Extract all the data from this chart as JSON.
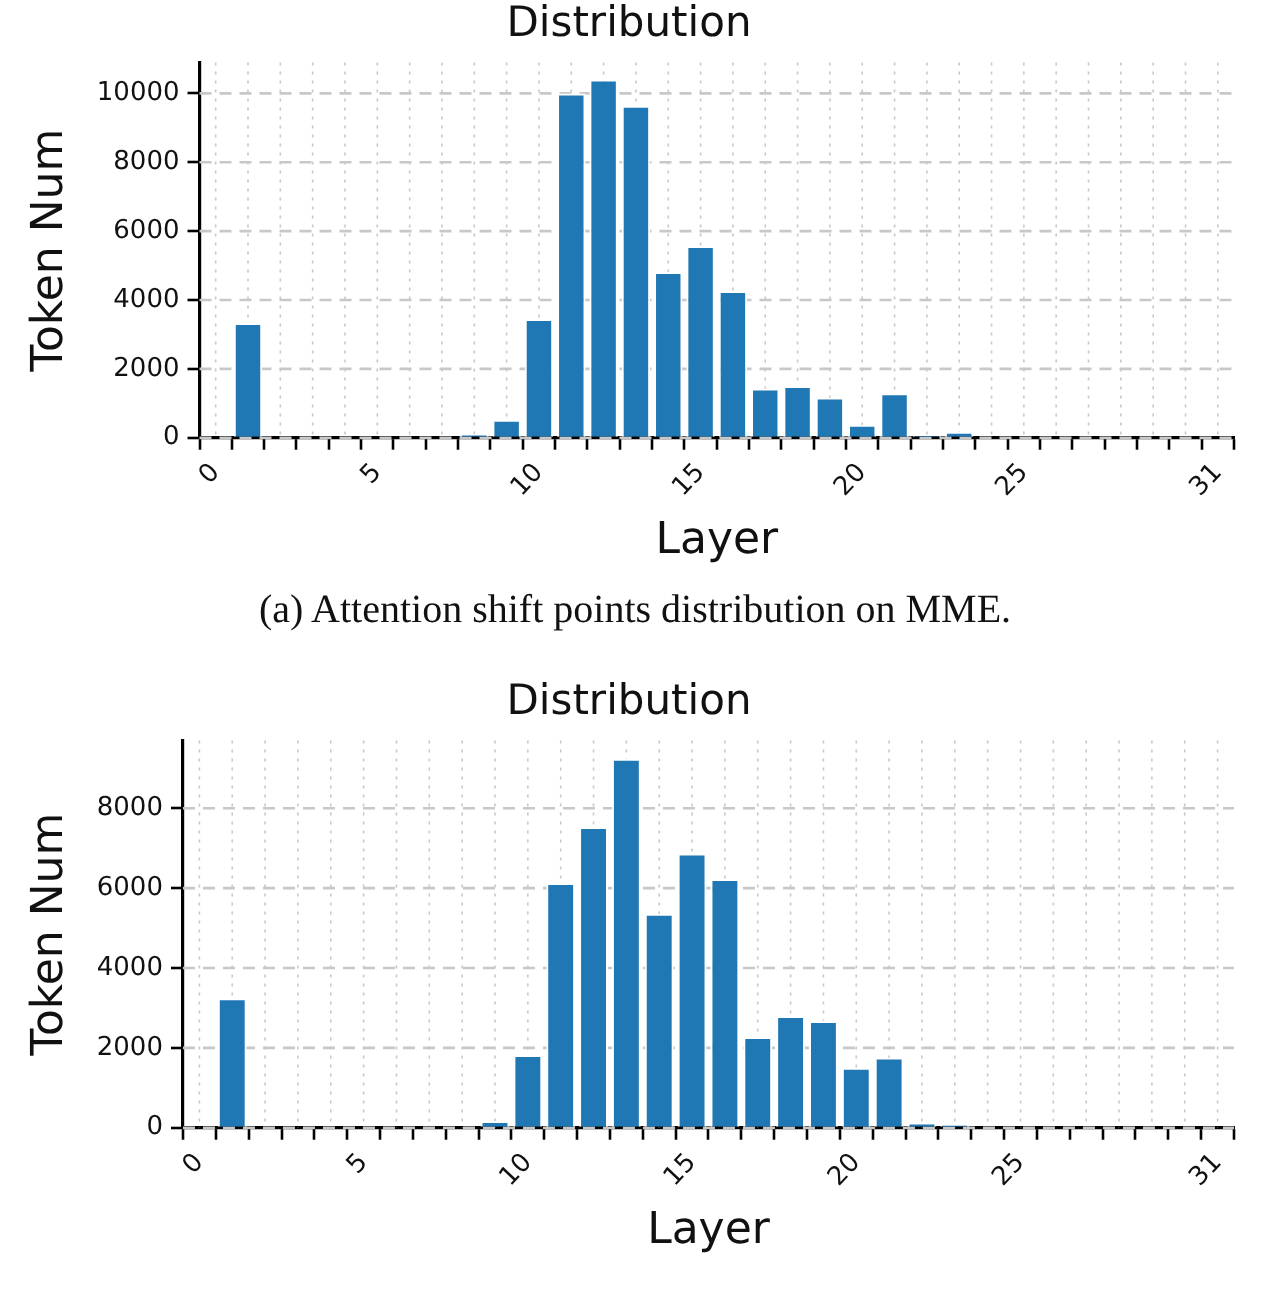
{
  "chart_data": [
    {
      "type": "bar",
      "title": "Distribution",
      "xlabel": "Layer",
      "ylabel": "Token Num",
      "color": "#1f77b4",
      "x": [
        0,
        1,
        2,
        3,
        4,
        5,
        6,
        7,
        8,
        9,
        10,
        11,
        12,
        13,
        14,
        15,
        16,
        17,
        18,
        19,
        20,
        21,
        22,
        23,
        24,
        25,
        26,
        27,
        28,
        29,
        30,
        31
      ],
      "values": [
        0,
        3330,
        0,
        0,
        0,
        0,
        0,
        0,
        100,
        520,
        3450,
        10000,
        10400,
        9640,
        4810,
        5570,
        4260,
        1430,
        1500,
        1170,
        380,
        1290,
        70,
        170,
        0,
        0,
        0,
        0,
        0,
        0,
        0,
        0
      ],
      "xlim": [
        -0.5,
        31.5
      ],
      "xticks": [
        0,
        {
          "value": 1,
          "label": null
        },
        {
          "value": 2,
          "label": null
        },
        {
          "value": 3,
          "label": null
        },
        {
          "value": 4,
          "label": null
        },
        5,
        {
          "value": 6,
          "label": null
        },
        {
          "value": 7,
          "label": null
        },
        {
          "value": 8,
          "label": null
        },
        {
          "value": 9,
          "label": null
        },
        10,
        {
          "value": 11,
          "label": null
        },
        {
          "value": 12,
          "label": null
        },
        {
          "value": 13,
          "label": null
        },
        {
          "value": 14,
          "label": null
        },
        15,
        {
          "value": 16,
          "label": null
        },
        {
          "value": 17,
          "label": null
        },
        {
          "value": 18,
          "label": null
        },
        {
          "value": 19,
          "label": null
        },
        20,
        {
          "value": 21,
          "label": null
        },
        {
          "value": 22,
          "label": null
        },
        {
          "value": 23,
          "label": null
        },
        {
          "value": 24,
          "label": null
        },
        25,
        {
          "value": 26,
          "label": null
        },
        {
          "value": 27,
          "label": null
        },
        {
          "value": 28,
          "label": null
        },
        {
          "value": 29,
          "label": null
        },
        {
          "value": 30,
          "label": null
        },
        31
      ],
      "ylim": [
        0,
        10900
      ],
      "yticks": [
        0,
        2000,
        4000,
        6000,
        8000,
        10000
      ],
      "grid": true,
      "annotations": [
        "(a) Attention shift points distribution on MME."
      ]
    },
    {
      "type": "bar",
      "title": "Distribution",
      "xlabel": "Layer",
      "ylabel": "Token Num",
      "color": "#1f77b4",
      "x": [
        0,
        1,
        2,
        3,
        4,
        5,
        6,
        7,
        8,
        9,
        10,
        11,
        12,
        13,
        14,
        15,
        16,
        17,
        18,
        19,
        20,
        21,
        22,
        23,
        24,
        25,
        26,
        27,
        28,
        29,
        30,
        31
      ],
      "values": [
        0,
        3240,
        0,
        0,
        0,
        0,
        0,
        0,
        0,
        170,
        1820,
        6130,
        7530,
        9240,
        5360,
        6870,
        6230,
        2270,
        2800,
        2670,
        1500,
        1760,
        130,
        80,
        0,
        0,
        0,
        0,
        0,
        0,
        0,
        0
      ],
      "xlim": [
        -0.5,
        31.5
      ],
      "xticks": [
        0,
        {
          "value": 1,
          "label": null
        },
        {
          "value": 2,
          "label": null
        },
        {
          "value": 3,
          "label": null
        },
        {
          "value": 4,
          "label": null
        },
        5,
        {
          "value": 6,
          "label": null
        },
        {
          "value": 7,
          "label": null
        },
        {
          "value": 8,
          "label": null
        },
        {
          "value": 9,
          "label": null
        },
        10,
        {
          "value": 11,
          "label": null
        },
        {
          "value": 12,
          "label": null
        },
        {
          "value": 13,
          "label": null
        },
        {
          "value": 14,
          "label": null
        },
        15,
        {
          "value": 16,
          "label": null
        },
        {
          "value": 17,
          "label": null
        },
        {
          "value": 18,
          "label": null
        },
        {
          "value": 19,
          "label": null
        },
        20,
        {
          "value": 21,
          "label": null
        },
        {
          "value": 22,
          "label": null
        },
        {
          "value": 23,
          "label": null
        },
        {
          "value": 24,
          "label": null
        },
        25,
        {
          "value": 26,
          "label": null
        },
        {
          "value": 27,
          "label": null
        },
        {
          "value": 28,
          "label": null
        },
        {
          "value": 29,
          "label": null
        },
        {
          "value": 30,
          "label": null
        },
        31
      ],
      "ylim": [
        0,
        9700
      ],
      "yticks": [
        0,
        2000,
        4000,
        6000,
        8000
      ],
      "grid": true
    }
  ]
}
